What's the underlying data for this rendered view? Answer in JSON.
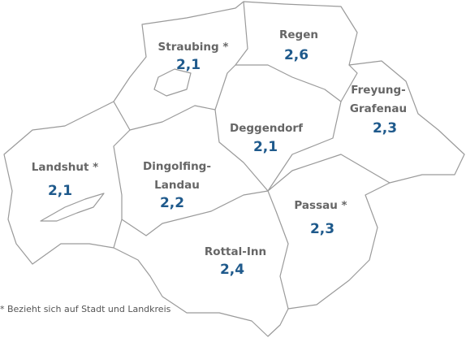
{
  "regions": [
    {
      "name": [
        "Straubing *"
      ],
      "value": "2,1"
    },
    {
      "name": [
        "Regen"
      ],
      "value": "2,6"
    },
    {
      "name": [
        "Freyung-",
        "Grafenau"
      ],
      "value": "2,3"
    },
    {
      "name": [
        "Deggendorf"
      ],
      "value": "2,1"
    },
    {
      "name": [
        "Landshut *"
      ],
      "value": "2,1"
    },
    {
      "name": [
        "Dingolfing-",
        "Landau"
      ],
      "value": "2,2"
    },
    {
      "name": [
        "Passau *"
      ],
      "value": "2,3"
    },
    {
      "name": [
        "Rottal-Inn"
      ],
      "value": "2,4"
    }
  ],
  "footnote": "* Bezieht sich auf Stadt und Landkreis"
}
